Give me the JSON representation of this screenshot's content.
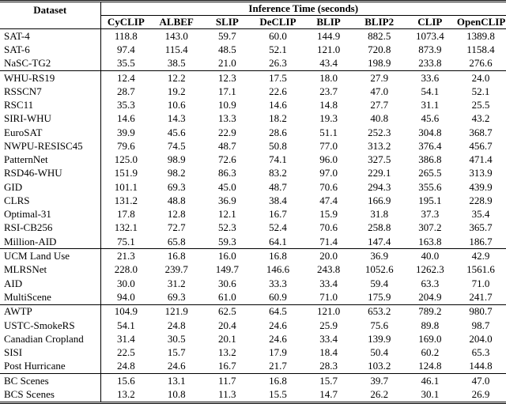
{
  "table": {
    "header": {
      "dataset_label": "Dataset",
      "group_label": "Inference Time (seconds)",
      "columns": [
        "CyCLIP",
        "ALBEF",
        "SLIP",
        "DeCLIP",
        "BLIP",
        "BLIP2",
        "CLIP",
        "OpenCLIP"
      ]
    },
    "groups": [
      {
        "rows": [
          {
            "name": "SAT-4",
            "values": [
              "118.8",
              "143.0",
              "59.7",
              "60.0",
              "144.9",
              "882.5",
              "1073.4",
              "1389.8"
            ]
          },
          {
            "name": "SAT-6",
            "values": [
              "97.4",
              "115.4",
              "48.5",
              "52.1",
              "121.0",
              "720.8",
              "873.9",
              "1158.4"
            ]
          },
          {
            "name": "NaSC-TG2",
            "values": [
              "35.5",
              "38.5",
              "21.0",
              "26.3",
              "43.4",
              "198.9",
              "233.8",
              "276.6"
            ]
          }
        ]
      },
      {
        "rows": [
          {
            "name": "WHU-RS19",
            "values": [
              "12.4",
              "12.2",
              "12.3",
              "17.5",
              "18.0",
              "27.9",
              "33.6",
              "24.0"
            ]
          },
          {
            "name": "RSSCN7",
            "values": [
              "28.7",
              "19.2",
              "17.1",
              "22.6",
              "23.7",
              "47.0",
              "54.1",
              "52.1"
            ]
          },
          {
            "name": "RSC11",
            "values": [
              "35.3",
              "10.6",
              "10.9",
              "14.6",
              "14.8",
              "27.7",
              "31.1",
              "25.5"
            ]
          },
          {
            "name": "SIRI-WHU",
            "values": [
              "14.6",
              "14.3",
              "13.3",
              "18.2",
              "19.3",
              "40.8",
              "45.6",
              "43.2"
            ]
          },
          {
            "name": "EuroSAT",
            "values": [
              "39.9",
              "45.6",
              "22.9",
              "28.6",
              "51.1",
              "252.3",
              "304.8",
              "368.7"
            ]
          },
          {
            "name": "NWPU-RESISC45",
            "values": [
              "79.6",
              "74.5",
              "48.7",
              "50.8",
              "77.0",
              "313.2",
              "376.4",
              "456.7"
            ]
          },
          {
            "name": "PatternNet",
            "values": [
              "125.0",
              "98.9",
              "72.6",
              "74.1",
              "96.0",
              "327.5",
              "386.8",
              "471.4"
            ]
          },
          {
            "name": "RSD46-WHU",
            "values": [
              "151.9",
              "98.2",
              "86.3",
              "83.2",
              "97.0",
              "229.1",
              "265.5",
              "313.9"
            ]
          },
          {
            "name": "GID",
            "values": [
              "101.1",
              "69.3",
              "45.0",
              "48.7",
              "70.6",
              "294.3",
              "355.6",
              "439.9"
            ]
          },
          {
            "name": "CLRS",
            "values": [
              "131.2",
              "48.8",
              "36.9",
              "38.4",
              "47.4",
              "166.9",
              "195.1",
              "228.9"
            ]
          },
          {
            "name": "Optimal-31",
            "values": [
              "17.8",
              "12.8",
              "12.1",
              "16.7",
              "15.9",
              "31.8",
              "37.3",
              "35.4"
            ]
          },
          {
            "name": "RSI-CB256",
            "values": [
              "132.1",
              "72.7",
              "52.3",
              "52.4",
              "70.6",
              "258.8",
              "307.2",
              "365.7"
            ]
          },
          {
            "name": "Million-AID",
            "values": [
              "75.1",
              "65.8",
              "59.3",
              "64.1",
              "71.4",
              "147.4",
              "163.8",
              "186.7"
            ]
          }
        ]
      },
      {
        "rows": [
          {
            "name": "UCM Land Use",
            "values": [
              "21.3",
              "16.8",
              "16.0",
              "16.8",
              "20.0",
              "36.9",
              "40.0",
              "42.9"
            ]
          },
          {
            "name": "MLRSNet",
            "values": [
              "228.0",
              "239.7",
              "149.7",
              "146.6",
              "243.8",
              "1052.6",
              "1262.3",
              "1561.6"
            ]
          },
          {
            "name": "AID",
            "values": [
              "30.0",
              "31.2",
              "30.6",
              "33.3",
              "33.4",
              "59.4",
              "63.3",
              "71.0"
            ]
          },
          {
            "name": "MultiScene",
            "values": [
              "94.0",
              "69.3",
              "61.0",
              "60.9",
              "71.0",
              "175.9",
              "204.9",
              "241.7"
            ]
          }
        ]
      },
      {
        "rows": [
          {
            "name": "AWTP",
            "values": [
              "104.9",
              "121.9",
              "62.5",
              "64.5",
              "121.0",
              "653.2",
              "789.2",
              "980.7"
            ]
          },
          {
            "name": "USTC-SmokeRS",
            "values": [
              "54.1",
              "24.8",
              "20.4",
              "24.6",
              "25.9",
              "75.6",
              "89.8",
              "98.7"
            ]
          },
          {
            "name": "Canadian Cropland",
            "values": [
              "31.4",
              "30.5",
              "20.1",
              "24.6",
              "33.4",
              "139.9",
              "169.0",
              "204.0"
            ]
          },
          {
            "name": "SISI",
            "values": [
              "22.5",
              "15.7",
              "13.2",
              "17.9",
              "18.4",
              "50.4",
              "60.2",
              "65.3"
            ]
          },
          {
            "name": "Post Hurricane",
            "values": [
              "24.8",
              "24.6",
              "16.7",
              "21.7",
              "28.3",
              "103.2",
              "124.8",
              "144.8"
            ]
          }
        ]
      },
      {
        "rows": [
          {
            "name": "BC Scenes",
            "values": [
              "15.6",
              "13.1",
              "11.7",
              "16.8",
              "15.7",
              "39.7",
              "46.1",
              "47.0"
            ]
          },
          {
            "name": "BCS Scenes",
            "values": [
              "13.2",
              "10.8",
              "11.3",
              "15.5",
              "14.7",
              "26.2",
              "30.1",
              "26.9"
            ]
          }
        ]
      }
    ]
  }
}
